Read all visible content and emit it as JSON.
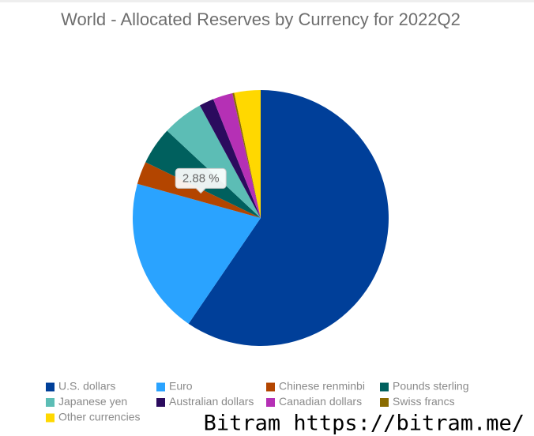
{
  "chart_data": {
    "type": "pie",
    "title": "World - Allocated Reserves by Currency for 2022Q2",
    "categories": [
      "U.S. dollars",
      "Euro",
      "Chinese renminbi",
      "Pounds sterling",
      "Japanese yen",
      "Australian dollars",
      "Canadian dollars",
      "Swiss francs",
      "Other currencies"
    ],
    "values": [
      59.53,
      19.77,
      2.88,
      4.76,
      5.18,
      1.84,
      2.49,
      0.23,
      3.32
    ],
    "value_labels": [
      null,
      null,
      "2.88 %",
      null,
      null,
      null,
      null,
      null,
      null
    ],
    "colors": [
      "#003f99",
      "#2aa3ff",
      "#b34500",
      "#00605e",
      "#5cbdb5",
      "#2b0b5e",
      "#b530b5",
      "#8a6b00",
      "#ffd800"
    ]
  },
  "watermark": "Bitram https://bitram.me/"
}
